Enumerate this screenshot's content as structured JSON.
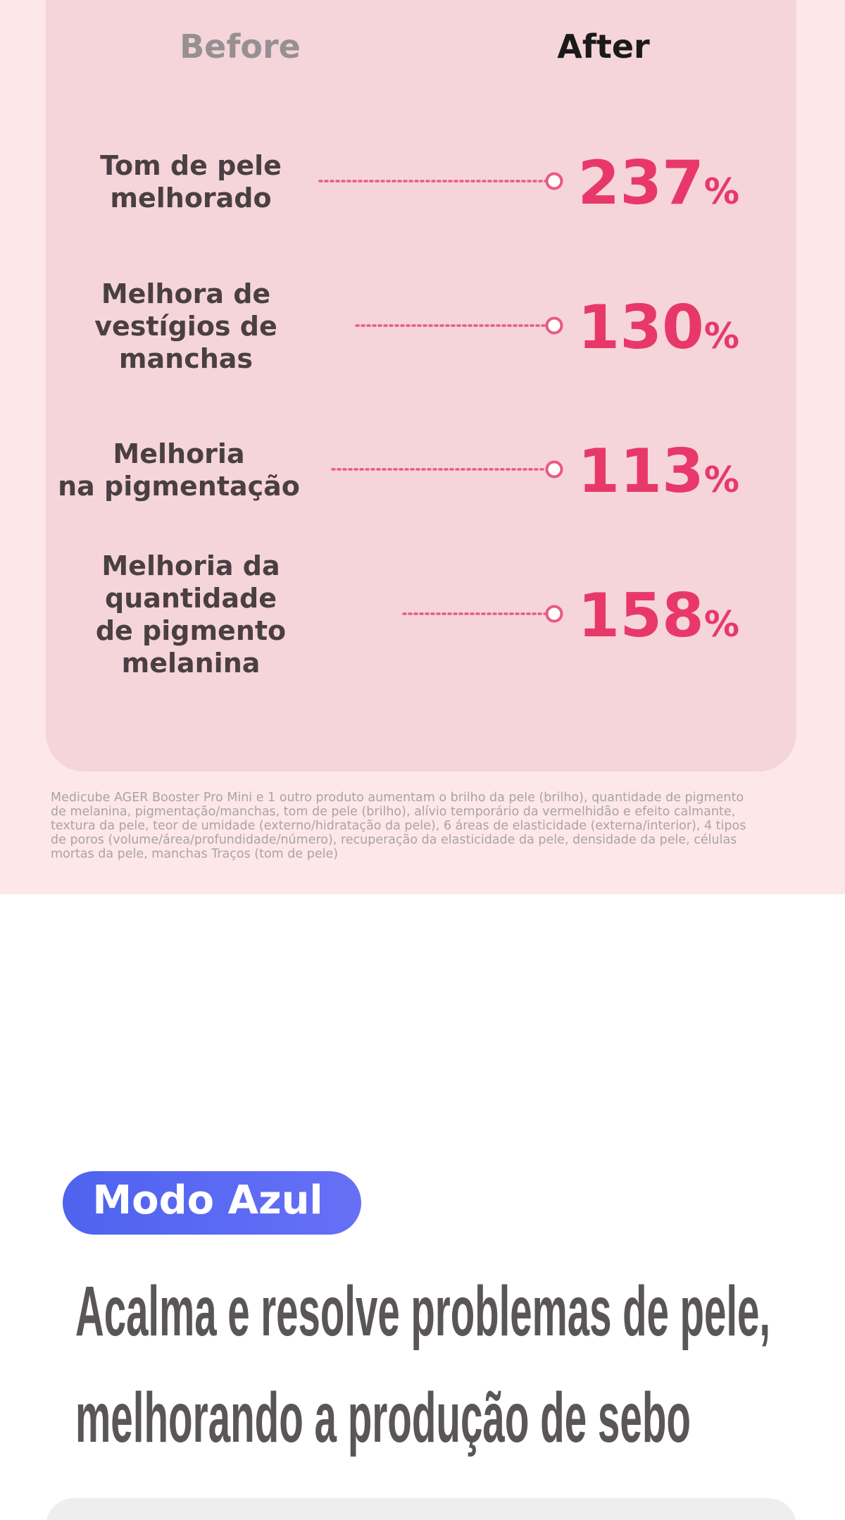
{
  "comparison": {
    "before": "Before",
    "after": "After",
    "rows": [
      {
        "label": [
          "Tom de pele",
          "melhorado"
        ],
        "value": "237",
        "unit": "%"
      },
      {
        "label": [
          "Melhora de",
          "vestígios de",
          "manchas"
        ],
        "value": "130",
        "unit": "%"
      },
      {
        "label": [
          "Melhoria",
          "na pigmentação"
        ],
        "value": "113",
        "unit": "%"
      },
      {
        "label": [
          "Melhoria da",
          "quantidade",
          "de pigmento",
          "melanina"
        ],
        "value": "158",
        "unit": "%"
      }
    ]
  },
  "footnote": [
    "Medicube AGER Booster Pro Mini e 1 outro produto aumentam o brilho da pele (brilho), quantidade de pigmento",
    "de melanina, pigmentação/manchas, tom de pele (brilho), alívio temporário da vermelhidão e efeito calmante,",
    "textura da pele, teor de umidade (externo/hidratação da pele), 6 áreas de elasticidade (externa/interior), 4 tipos",
    "de poros (volume/área/profundidade/número), recuperação da elasticidade da pele, densidade da pele, células",
    " mortas da pele, manchas Traços (tom de pele)"
  ],
  "badge": "Modo Azul",
  "heading": [
    "Acalma e resolve problemas de pele,",
    "melhorando a produção de sebo"
  ]
}
